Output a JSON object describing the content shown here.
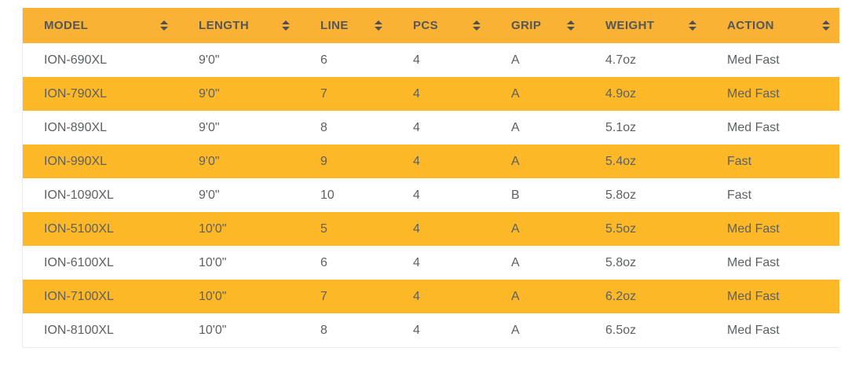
{
  "colors": {
    "header_bg": "#F9B233",
    "row_alt_bg": "#FCB826",
    "header_text": "#54565A",
    "cell_text": "#5D6064",
    "sort_icon": "#4D5054",
    "border": "#EBEBEB",
    "row_bg": "#FFFFFF"
  },
  "table": {
    "columns": [
      {
        "key": "model",
        "label": "MODEL"
      },
      {
        "key": "length",
        "label": "LENGTH"
      },
      {
        "key": "line",
        "label": "LINE"
      },
      {
        "key": "pcs",
        "label": "PCS"
      },
      {
        "key": "grip",
        "label": "GRIP"
      },
      {
        "key": "weight",
        "label": "WEIGHT"
      },
      {
        "key": "action",
        "label": "ACTION"
      }
    ],
    "rows": [
      [
        "ION-690XL",
        "9'0\"",
        "6",
        "4",
        "A",
        "4.7oz",
        "Med Fast"
      ],
      [
        "ION-790XL",
        "9'0\"",
        "7",
        "4",
        "A",
        "4.9oz",
        "Med Fast"
      ],
      [
        "ION-890XL",
        "9'0\"",
        "8",
        "4",
        "A",
        "5.1oz",
        "Med Fast"
      ],
      [
        "ION-990XL",
        "9'0\"",
        "9",
        "4",
        "A",
        "5.4oz",
        "Fast"
      ],
      [
        "ION-1090XL",
        "9'0\"",
        "10",
        "4",
        "B",
        "5.8oz",
        "Fast"
      ],
      [
        "ION-5100XL",
        "10'0\"",
        "5",
        "4",
        "A",
        "5.5oz",
        "Med Fast"
      ],
      [
        "ION-6100XL",
        "10'0\"",
        "6",
        "4",
        "A",
        "5.8oz",
        "Med Fast"
      ],
      [
        "ION-7100XL",
        "10'0\"",
        "7",
        "4",
        "A",
        "6.2oz",
        "Med Fast"
      ],
      [
        "ION-8100XL",
        "10'0\"",
        "8",
        "4",
        "A",
        "6.5oz",
        "Med Fast"
      ]
    ]
  }
}
